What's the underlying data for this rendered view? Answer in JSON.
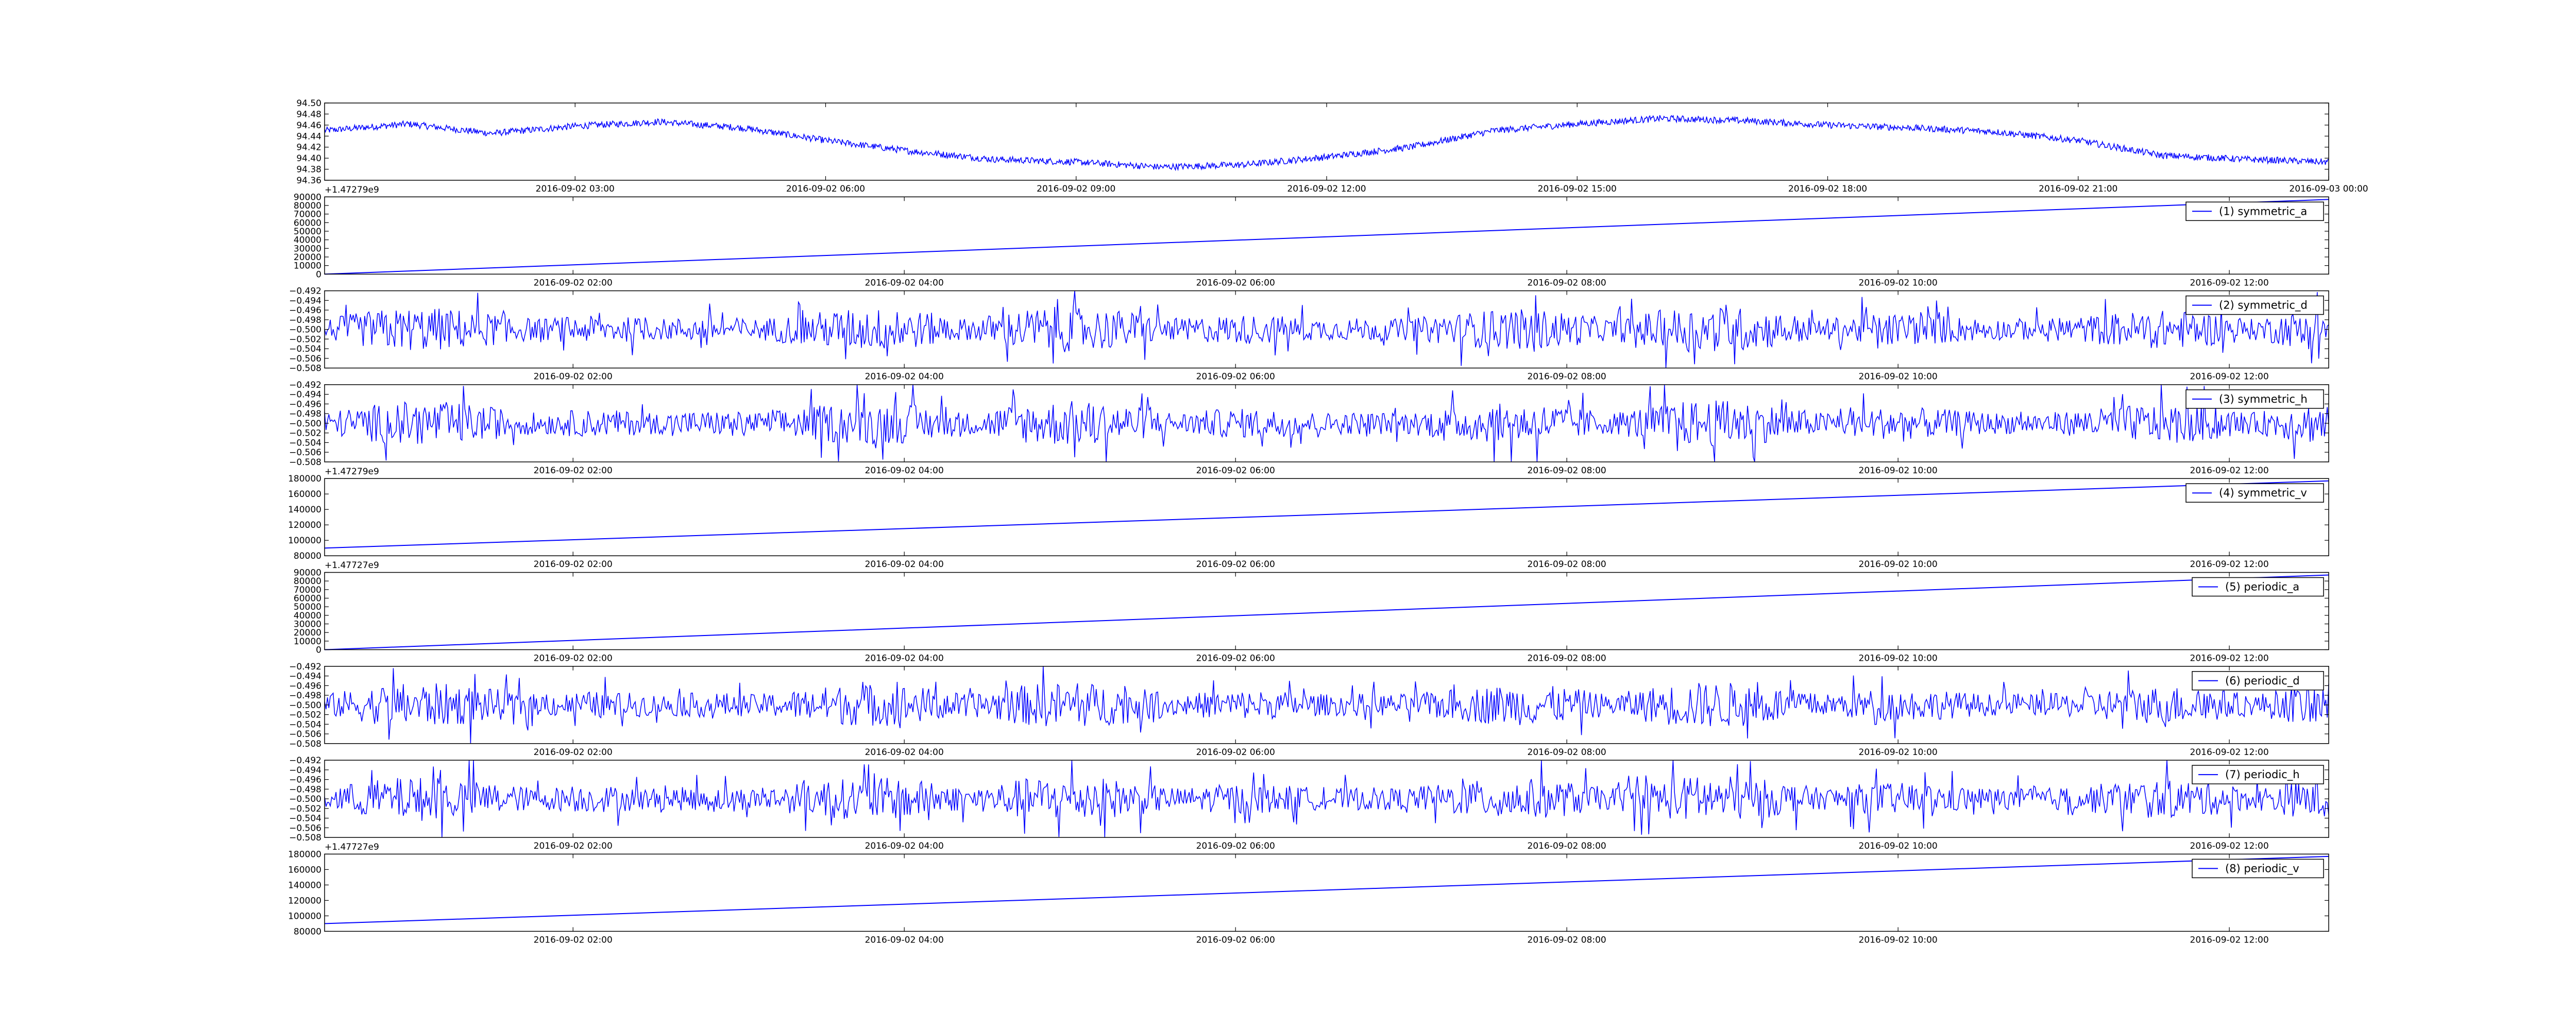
{
  "chart_data": [
    {
      "type": "line",
      "x_type": "datetime",
      "x_range": [
        "2016-09-02 00:00",
        "2016-09-03 00:00"
      ],
      "x_ticks": [
        "2016-09-02 03:00",
        "2016-09-02 06:00",
        "2016-09-02 09:00",
        "2016-09-02 12:00",
        "2016-09-02 15:00",
        "2016-09-02 18:00",
        "2016-09-02 21:00",
        "2016-09-03 00:00"
      ],
      "y_ticks": [
        "94.36",
        "94.38",
        "94.40",
        "94.42",
        "94.44",
        "94.46",
        "94.48",
        "94.50"
      ],
      "ylim": [
        94.36,
        94.5
      ],
      "offset_label": "+1.47279e9",
      "legend": "",
      "color": "#0000ff",
      "shape": "noisy-wave",
      "series": [
        {
          "x": [
            "2016-09-02 00:00",
            "2016-09-02 01:00",
            "2016-09-02 02:00",
            "2016-09-02 03:00",
            "2016-09-02 04:00",
            "2016-09-02 05:00",
            "2016-09-02 06:00",
            "2016-09-02 07:00",
            "2016-09-02 08:00",
            "2016-09-02 09:00",
            "2016-09-02 10:00",
            "2016-09-02 11:00",
            "2016-09-02 12:00",
            "2016-09-02 13:00",
            "2016-09-02 14:00",
            "2016-09-02 15:00",
            "2016-09-02 16:00",
            "2016-09-02 17:00",
            "2016-09-02 18:00",
            "2016-09-02 19:00",
            "2016-09-02 20:00",
            "2016-09-02 21:00",
            "2016-09-02 22:00",
            "2016-09-02 23:00",
            "2016-09-03 00:00"
          ],
          "values": [
            94.45,
            94.462,
            94.445,
            94.458,
            94.466,
            94.455,
            94.432,
            94.413,
            94.398,
            94.393,
            94.384,
            94.388,
            94.402,
            94.42,
            94.45,
            94.462,
            94.472,
            94.468,
            94.46,
            94.455,
            94.448,
            94.432,
            94.405,
            94.398,
            94.393
          ]
        }
      ]
    },
    {
      "type": "line",
      "x_type": "datetime",
      "x_range": [
        "2016-09-02 00:30",
        "2016-09-02 12:36"
      ],
      "x_ticks": [
        "2016-09-02 02:00",
        "2016-09-02 04:00",
        "2016-09-02 06:00",
        "2016-09-02 08:00",
        "2016-09-02 10:00",
        "2016-09-02 12:00"
      ],
      "y_ticks": [
        "0",
        "10000",
        "20000",
        "30000",
        "40000",
        "50000",
        "60000",
        "70000",
        "80000",
        "90000"
      ],
      "ylim": [
        0,
        90000
      ],
      "offset_label": "",
      "legend": "(1) symmetric_a",
      "color": "#0000ff",
      "shape": "linear",
      "start": 0,
      "end": 87000,
      "amplitude": 0
    },
    {
      "type": "line",
      "x_type": "datetime",
      "x_range": [
        "2016-09-02 00:30",
        "2016-09-02 12:36"
      ],
      "x_ticks": [
        "2016-09-02 02:00",
        "2016-09-02 04:00",
        "2016-09-02 06:00",
        "2016-09-02 08:00",
        "2016-09-02 10:00",
        "2016-09-02 12:00"
      ],
      "y_ticks": [
        "−0.508",
        "−0.506",
        "−0.504",
        "−0.502",
        "−0.500",
        "−0.498",
        "−0.496",
        "−0.494",
        "−0.492"
      ],
      "ylim": [
        -0.508,
        -0.492
      ],
      "offset_label": "",
      "legend": "(2) symmetric_d",
      "color": "#0000ff",
      "shape": "noise",
      "start": -0.5,
      "end": -0.5,
      "amplitude": 0.0065
    },
    {
      "type": "line",
      "x_type": "datetime",
      "x_range": [
        "2016-09-02 00:30",
        "2016-09-02 12:36"
      ],
      "x_ticks": [
        "2016-09-02 02:00",
        "2016-09-02 04:00",
        "2016-09-02 06:00",
        "2016-09-02 08:00",
        "2016-09-02 10:00",
        "2016-09-02 12:00"
      ],
      "y_ticks": [
        "−0.508",
        "−0.506",
        "−0.504",
        "−0.502",
        "−0.500",
        "−0.498",
        "−0.496",
        "−0.494",
        "−0.492"
      ],
      "ylim": [
        -0.508,
        -0.492
      ],
      "offset_label": "+1.47279e9",
      "legend": "(3) symmetric_h",
      "color": "#0000ff",
      "shape": "noise",
      "start": -0.5,
      "end": -0.5,
      "amplitude": 0.0065
    },
    {
      "type": "line",
      "x_type": "datetime",
      "x_range": [
        "2016-09-02 00:30",
        "2016-09-02 12:36"
      ],
      "x_ticks": [
        "2016-09-02 02:00",
        "2016-09-02 04:00",
        "2016-09-02 06:00",
        "2016-09-02 08:00",
        "2016-09-02 10:00",
        "2016-09-02 12:00"
      ],
      "y_ticks": [
        "80000",
        "100000",
        "120000",
        "140000",
        "160000",
        "180000"
      ],
      "ylim": [
        80000,
        180000
      ],
      "offset_label": "+1.47727e9",
      "legend": "(4) symmetric_v",
      "color": "#0000ff",
      "shape": "linear",
      "start": 90000,
      "end": 177000,
      "amplitude": 0
    },
    {
      "type": "line",
      "x_type": "datetime",
      "x_range": [
        "2016-09-02 00:30",
        "2016-09-02 12:36"
      ],
      "x_ticks": [
        "2016-09-02 02:00",
        "2016-09-02 04:00",
        "2016-09-02 06:00",
        "2016-09-02 08:00",
        "2016-09-02 10:00",
        "2016-09-02 12:00"
      ],
      "y_ticks": [
        "0",
        "10000",
        "20000",
        "30000",
        "40000",
        "50000",
        "60000",
        "70000",
        "80000",
        "90000"
      ],
      "ylim": [
        0,
        90000
      ],
      "offset_label": "",
      "legend": "(5) periodic_a",
      "color": "#0000ff",
      "shape": "linear",
      "start": 0,
      "end": 87000,
      "amplitude": 0
    },
    {
      "type": "line",
      "x_type": "datetime",
      "x_range": [
        "2016-09-02 00:30",
        "2016-09-02 12:36"
      ],
      "x_ticks": [
        "2016-09-02 02:00",
        "2016-09-02 04:00",
        "2016-09-02 06:00",
        "2016-09-02 08:00",
        "2016-09-02 10:00",
        "2016-09-02 12:00"
      ],
      "y_ticks": [
        "−0.508",
        "−0.506",
        "−0.504",
        "−0.502",
        "−0.500",
        "−0.498",
        "−0.496",
        "−0.494",
        "−0.492"
      ],
      "ylim": [
        -0.508,
        -0.492
      ],
      "offset_label": "",
      "legend": "(6) periodic_d",
      "color": "#0000ff",
      "shape": "noise",
      "start": -0.5,
      "end": -0.5,
      "amplitude": 0.0065
    },
    {
      "type": "line",
      "x_type": "datetime",
      "x_range": [
        "2016-09-02 00:30",
        "2016-09-02 12:36"
      ],
      "x_ticks": [
        "2016-09-02 02:00",
        "2016-09-02 04:00",
        "2016-09-02 06:00",
        "2016-09-02 08:00",
        "2016-09-02 10:00",
        "2016-09-02 12:00"
      ],
      "y_ticks": [
        "−0.508",
        "−0.506",
        "−0.504",
        "−0.502",
        "−0.500",
        "−0.498",
        "−0.496",
        "−0.494",
        "−0.492"
      ],
      "ylim": [
        -0.508,
        -0.492
      ],
      "offset_label": "+1.47727e9",
      "legend": "(7) periodic_h",
      "color": "#0000ff",
      "shape": "noise",
      "start": -0.5,
      "end": -0.5,
      "amplitude": 0.0065
    },
    {
      "type": "line",
      "x_type": "datetime",
      "x_range": [
        "2016-09-02 00:30",
        "2016-09-02 12:36"
      ],
      "x_ticks": [
        "2016-09-02 02:00",
        "2016-09-02 04:00",
        "2016-09-02 06:00",
        "2016-09-02 08:00",
        "2016-09-02 10:00",
        "2016-09-02 12:00"
      ],
      "y_ticks": [
        "80000",
        "100000",
        "120000",
        "140000",
        "160000",
        "180000"
      ],
      "ylim": [
        80000,
        180000
      ],
      "offset_label": "",
      "legend": "(8) periodic_v",
      "color": "#0000ff",
      "shape": "linear",
      "start": 90000,
      "end": 177000,
      "amplitude": 0
    }
  ]
}
